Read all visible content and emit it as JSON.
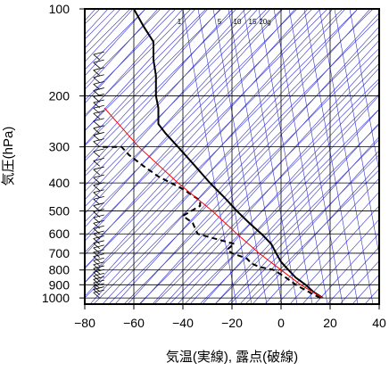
{
  "chart_data": {
    "type": "line",
    "title": "",
    "xlabel": "気温(実線), 露点(破線)",
    "ylabel": "気圧(hPa)",
    "xlim": [
      -80,
      40
    ],
    "ylim": [
      1050,
      100
    ],
    "y_scale": "log",
    "x_ticks": [
      "−80",
      "−60",
      "−40",
      "−20",
      "0",
      "20",
      "40"
    ],
    "x_tick_values": [
      -80,
      -60,
      -40,
      -20,
      0,
      20,
      40
    ],
    "y_ticks": [
      "100",
      "200",
      "300",
      "400",
      "500",
      "600",
      "700",
      "800",
      "900",
      "1000"
    ],
    "y_tick_values": [
      100,
      200,
      300,
      400,
      500,
      600,
      700,
      800,
      900,
      1000
    ],
    "grid": true,
    "skew_t": true,
    "mixing_ratio_labels": [
      "1",
      "5",
      "10",
      "15",
      "20g"
    ],
    "series": [
      {
        "style": "solid",
        "color": "#000000",
        "points": [
          {
            "p": 1000,
            "t": 17
          },
          {
            "p": 950,
            "t": 13
          },
          {
            "p": 900,
            "t": 10
          },
          {
            "p": 850,
            "t": 6
          },
          {
            "p": 800,
            "t": 3
          },
          {
            "p": 750,
            "t": 0
          },
          {
            "p": 700,
            "t": -2
          },
          {
            "p": 650,
            "t": -4
          },
          {
            "p": 600,
            "t": -8
          },
          {
            "p": 550,
            "t": -13
          },
          {
            "p": 500,
            "t": -18
          },
          {
            "p": 450,
            "t": -23
          },
          {
            "p": 400,
            "t": -29
          },
          {
            "p": 350,
            "t": -35
          },
          {
            "p": 300,
            "t": -42
          },
          {
            "p": 270,
            "t": -47
          },
          {
            "p": 250,
            "t": -50
          },
          {
            "p": 220,
            "t": -50
          },
          {
            "p": 200,
            "t": -51
          },
          {
            "p": 170,
            "t": -51
          },
          {
            "p": 150,
            "t": -52
          },
          {
            "p": 130,
            "t": -52
          },
          {
            "p": 115,
            "t": -56
          },
          {
            "p": 100,
            "t": -60
          }
        ]
      },
      {
        "style": "dashed",
        "color": "#000000",
        "points": [
          {
            "p": 1000,
            "t": 16
          },
          {
            "p": 950,
            "t": 11
          },
          {
            "p": 900,
            "t": 6
          },
          {
            "p": 850,
            "t": 2
          },
          {
            "p": 800,
            "t": -3
          },
          {
            "p": 780,
            "t": -9
          },
          {
            "p": 760,
            "t": -12
          },
          {
            "p": 730,
            "t": -14
          },
          {
            "p": 700,
            "t": -20
          },
          {
            "p": 680,
            "t": -22
          },
          {
            "p": 650,
            "t": -19
          },
          {
            "p": 620,
            "t": -28
          },
          {
            "p": 600,
            "t": -34
          },
          {
            "p": 550,
            "t": -36
          },
          {
            "p": 520,
            "t": -40
          },
          {
            "p": 480,
            "t": -33
          },
          {
            "p": 460,
            "t": -33
          },
          {
            "p": 420,
            "t": -40
          },
          {
            "p": 380,
            "t": -50
          },
          {
            "p": 350,
            "t": -56
          },
          {
            "p": 320,
            "t": -62
          },
          {
            "p": 300,
            "t": -65
          },
          {
            "p": 300,
            "t": -73
          }
        ]
      },
      {
        "style": "solid",
        "color": "#ff0000",
        "points": [
          {
            "p": 1000,
            "t": 17
          },
          {
            "p": 900,
            "t": 8
          },
          {
            "p": 800,
            "t": 0
          },
          {
            "p": 700,
            "t": -9
          },
          {
            "p": 600,
            "t": -18
          },
          {
            "p": 500,
            "t": -28
          },
          {
            "p": 400,
            "t": -42
          },
          {
            "p": 300,
            "t": -58
          },
          {
            "p": 220,
            "t": -72
          }
        ]
      }
    ],
    "wind_barbs": {
      "t_position": -75,
      "p_levels": [
        1000,
        975,
        950,
        925,
        900,
        875,
        850,
        825,
        800,
        775,
        750,
        725,
        700,
        675,
        650,
        625,
        600,
        575,
        550,
        525,
        500,
        475,
        450,
        425,
        400,
        375,
        350,
        325,
        300,
        285,
        270,
        255,
        240,
        230,
        220,
        210,
        200,
        190,
        180,
        170,
        160,
        150
      ]
    }
  }
}
